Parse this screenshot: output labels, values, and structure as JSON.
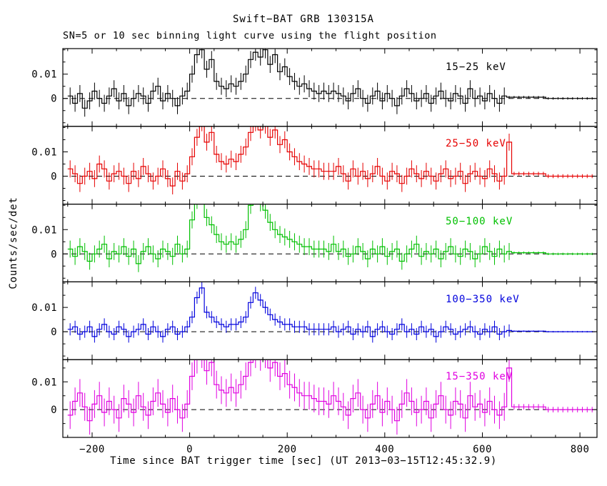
{
  "figure": {
    "title": "Swift−BAT GRB 130315A",
    "subtitle": "SN=5 or 10 sec binning light curve using the flight position",
    "xlabel": "Time since BAT trigger time [sec] (UT 2013−03−15T12:45:32.9)",
    "ylabel": "Counts/sec/det"
  },
  "chart_data": {
    "type": "line",
    "style": "step-histogram-with-errorbars",
    "title": "Swift−BAT GRB 130315A",
    "subtitle": "SN=5 or 10 sec binning light curve using the flight position",
    "xlabel": "Time since BAT trigger time [sec] (UT 2013−03−15T12:45:32.9)",
    "ylabel": "Counts/sec/det",
    "background": "#ffffff",
    "axis_color": "#000000",
    "zero_line": {
      "style": "dashed",
      "color": "#000000"
    },
    "x_start": -250,
    "bin_width": 10,
    "xlim": [
      -260,
      835
    ],
    "x_minor_step": 50,
    "xticks": [
      -200,
      0,
      200,
      400,
      600,
      800
    ],
    "xtick_labels": [
      "−200",
      "0",
      "200",
      "400",
      "600",
      "800"
    ],
    "yticks": [
      0,
      0.01
    ],
    "ytick_labels": [
      "0",
      "0.01"
    ],
    "y_minor_step": 0.005,
    "legend_position": "inside-right-of-each-panel",
    "grid": false,
    "series": [
      {
        "name": "15-25 keV",
        "label": "15−25 keV",
        "color": "#000000",
        "error": 0.0035,
        "tail_error": 0.0005,
        "tail_start_index": 90,
        "ylim": [
          -0.0115,
          0.0205
        ],
        "values": [
          0.001,
          -0.002,
          0.002,
          -0.004,
          -0.001,
          0.003,
          0.0,
          -0.002,
          0.001,
          0.004,
          -0.001,
          0.002,
          -0.003,
          0.0,
          0.002,
          0.001,
          -0.002,
          0.003,
          0.005,
          -0.001,
          0.002,
          0.0,
          -0.003,
          0.001,
          0.003,
          0.01,
          0.018,
          0.02,
          0.012,
          0.016,
          0.007,
          0.005,
          0.004,
          0.006,
          0.005,
          0.007,
          0.01,
          0.016,
          0.019,
          0.017,
          0.02,
          0.014,
          0.018,
          0.011,
          0.013,
          0.009,
          0.007,
          0.005,
          0.006,
          0.004,
          0.003,
          0.002,
          0.003,
          0.002,
          0.003,
          0.002,
          0.001,
          -0.001,
          0.002,
          0.004,
          0.0,
          -0.002,
          0.001,
          0.003,
          -0.001,
          0.002,
          0.0,
          -0.003,
          0.001,
          0.004,
          0.002,
          -0.001,
          0.0,
          0.002,
          -0.002,
          0.001,
          0.003,
          0.0,
          -0.001,
          0.002,
          0.001,
          -0.002,
          0.004,
          0.0,
          0.001,
          -0.001,
          0.002,
          0.0,
          -0.002,
          0.001,
          0.0005,
          0.0005,
          0.0005,
          0.0005,
          0.0005,
          0.0005,
          0.0005,
          0.0005,
          0,
          0,
          0,
          0,
          0,
          0,
          0,
          0,
          0,
          0
        ]
      },
      {
        "name": "25-50 keV",
        "label": "25−50 keV",
        "color": "#e60000",
        "error": 0.0035,
        "tail_error": 0.0008,
        "tail_start_index": 91,
        "ylim": [
          -0.0115,
          0.0205
        ],
        "values": [
          0.003,
          0.001,
          -0.003,
          0.0,
          0.002,
          -0.001,
          0.005,
          0.003,
          -0.002,
          0.001,
          0.002,
          0.0,
          -0.003,
          0.002,
          -0.001,
          0.004,
          0.001,
          -0.002,
          0.0,
          0.003,
          -0.001,
          -0.004,
          0.002,
          -0.002,
          0.001,
          0.008,
          0.016,
          0.022,
          0.014,
          0.018,
          0.009,
          0.006,
          0.005,
          0.007,
          0.006,
          0.009,
          0.012,
          0.018,
          0.022,
          0.019,
          0.021,
          0.016,
          0.019,
          0.013,
          0.015,
          0.01,
          0.008,
          0.006,
          0.005,
          0.004,
          0.003,
          0.003,
          0.002,
          0.002,
          0.002,
          0.004,
          0.001,
          -0.002,
          0.003,
          0.0,
          0.002,
          -0.001,
          0.001,
          0.004,
          0.0,
          -0.002,
          0.002,
          0.001,
          -0.003,
          0.0,
          0.003,
          0.001,
          -0.001,
          0.002,
          0.0,
          -0.002,
          0.001,
          0.003,
          -0.001,
          0.0,
          0.002,
          -0.003,
          0.001,
          0.002,
          0.0,
          -0.001,
          0.003,
          0.001,
          -0.002,
          0.0,
          0.014,
          0.001,
          0.001,
          0.001,
          0.001,
          0.001,
          0.001,
          0.001,
          0,
          0,
          0,
          0,
          0,
          0,
          0,
          0,
          0,
          0
        ]
      },
      {
        "name": "50-100 keV",
        "label": "50−100 keV",
        "color": "#00c000",
        "error": 0.0035,
        "tail_error": 0.0005,
        "tail_start_index": 91,
        "ylim": [
          -0.0115,
          0.0205
        ],
        "values": [
          0.002,
          -0.001,
          0.003,
          0.001,
          -0.003,
          0.0,
          0.002,
          0.004,
          -0.002,
          0.001,
          0.0,
          0.003,
          -0.001,
          0.002,
          -0.004,
          0.001,
          0.003,
          0.0,
          -0.002,
          0.002,
          0.001,
          -0.001,
          0.004,
          0.0,
          0.002,
          0.014,
          0.022,
          0.024,
          0.015,
          0.012,
          0.008,
          0.005,
          0.004,
          0.005,
          0.004,
          0.006,
          0.01,
          0.02,
          0.024,
          0.021,
          0.018,
          0.013,
          0.01,
          0.008,
          0.007,
          0.006,
          0.005,
          0.004,
          0.003,
          0.003,
          0.002,
          0.002,
          0.002,
          0.001,
          0.004,
          0.001,
          0.002,
          -0.001,
          0.0,
          0.003,
          0.001,
          -0.002,
          0.002,
          0.0,
          0.003,
          -0.001,
          0.001,
          0.002,
          -0.003,
          0.0,
          0.002,
          0.004,
          -0.001,
          0.001,
          0.0,
          0.002,
          -0.002,
          0.001,
          0.003,
          0.0,
          -0.001,
          0.002,
          0.001,
          -0.002,
          0.0,
          0.003,
          0.001,
          -0.001,
          0.002,
          0.0,
          0.001,
          0.0005,
          0.0005,
          0.0005,
          0.0005,
          0.0005,
          0.0005,
          0.0005,
          0,
          0,
          0,
          0,
          0,
          0,
          0,
          0,
          0,
          0
        ]
      },
      {
        "name": "100-350 keV",
        "label": "100−350 keV",
        "color": "#0000dd",
        "error": 0.0025,
        "tail_error": 0.0003,
        "tail_start_index": 91,
        "ylim": [
          -0.0115,
          0.0205
        ],
        "values": [
          0.001,
          0.002,
          -0.001,
          0.0,
          0.002,
          -0.002,
          0.001,
          0.003,
          0.0,
          -0.001,
          0.002,
          0.001,
          -0.002,
          0.0,
          0.001,
          0.003,
          -0.001,
          0.002,
          0.0,
          -0.002,
          0.001,
          0.002,
          -0.001,
          0.0,
          0.002,
          0.006,
          0.014,
          0.018,
          0.008,
          0.006,
          0.004,
          0.003,
          0.002,
          0.003,
          0.003,
          0.004,
          0.006,
          0.012,
          0.016,
          0.013,
          0.01,
          0.007,
          0.005,
          0.004,
          0.003,
          0.003,
          0.002,
          0.002,
          0.002,
          0.001,
          0.001,
          0.001,
          0.001,
          0.001,
          0.002,
          0.0,
          0.001,
          0.002,
          -0.001,
          0.001,
          0.0,
          0.002,
          -0.002,
          0.001,
          0.002,
          0.0,
          -0.001,
          0.001,
          0.003,
          0.0,
          0.001,
          -0.001,
          0.002,
          0.0,
          0.001,
          -0.002,
          0.0,
          0.002,
          0.001,
          -0.001,
          0.0,
          0.001,
          0.002,
          0.0,
          -0.001,
          0.001,
          0.0,
          0.002,
          -0.001,
          0.0,
          0.0005,
          0.0002,
          0.0002,
          0.0002,
          0.0002,
          0.0002,
          0.0002,
          0.0002,
          0,
          0,
          0,
          0,
          0,
          0,
          0,
          0,
          0,
          0
        ]
      },
      {
        "name": "15-350 keV",
        "label": "15−350 keV",
        "color": "#e000e0",
        "error": 0.005,
        "tail_error": 0.001,
        "tail_start_index": 91,
        "ylim": [
          -0.01,
          0.018
        ],
        "values": [
          -0.002,
          0.003,
          0.006,
          0.001,
          -0.004,
          0.002,
          0.005,
          -0.001,
          0.003,
          0.0,
          -0.003,
          0.004,
          0.002,
          -0.001,
          0.005,
          0.001,
          -0.002,
          0.003,
          0.006,
          0.002,
          -0.001,
          0.004,
          0.0,
          -0.003,
          0.002,
          0.012,
          0.018,
          0.02,
          0.014,
          0.017,
          0.009,
          0.007,
          0.006,
          0.008,
          0.006,
          0.009,
          0.012,
          0.017,
          0.02,
          0.019,
          0.02,
          0.015,
          0.017,
          0.012,
          0.013,
          0.009,
          0.008,
          0.006,
          0.005,
          0.005,
          0.004,
          0.003,
          0.003,
          0.002,
          0.005,
          0.003,
          0.001,
          -0.002,
          0.004,
          0.006,
          0.0,
          -0.003,
          0.002,
          0.005,
          -0.001,
          0.003,
          0.0,
          -0.004,
          0.002,
          0.006,
          0.003,
          -0.001,
          0.0,
          0.003,
          -0.003,
          0.002,
          0.005,
          0.0,
          -0.002,
          0.003,
          0.002,
          -0.003,
          0.005,
          0.001,
          0.002,
          -0.001,
          0.003,
          0.0,
          -0.002,
          0.001,
          0.015,
          0.001,
          0.001,
          0.001,
          0.001,
          0.001,
          0.001,
          0.001,
          0,
          0,
          0,
          0,
          0,
          0,
          0,
          0,
          0,
          0
        ]
      }
    ]
  }
}
